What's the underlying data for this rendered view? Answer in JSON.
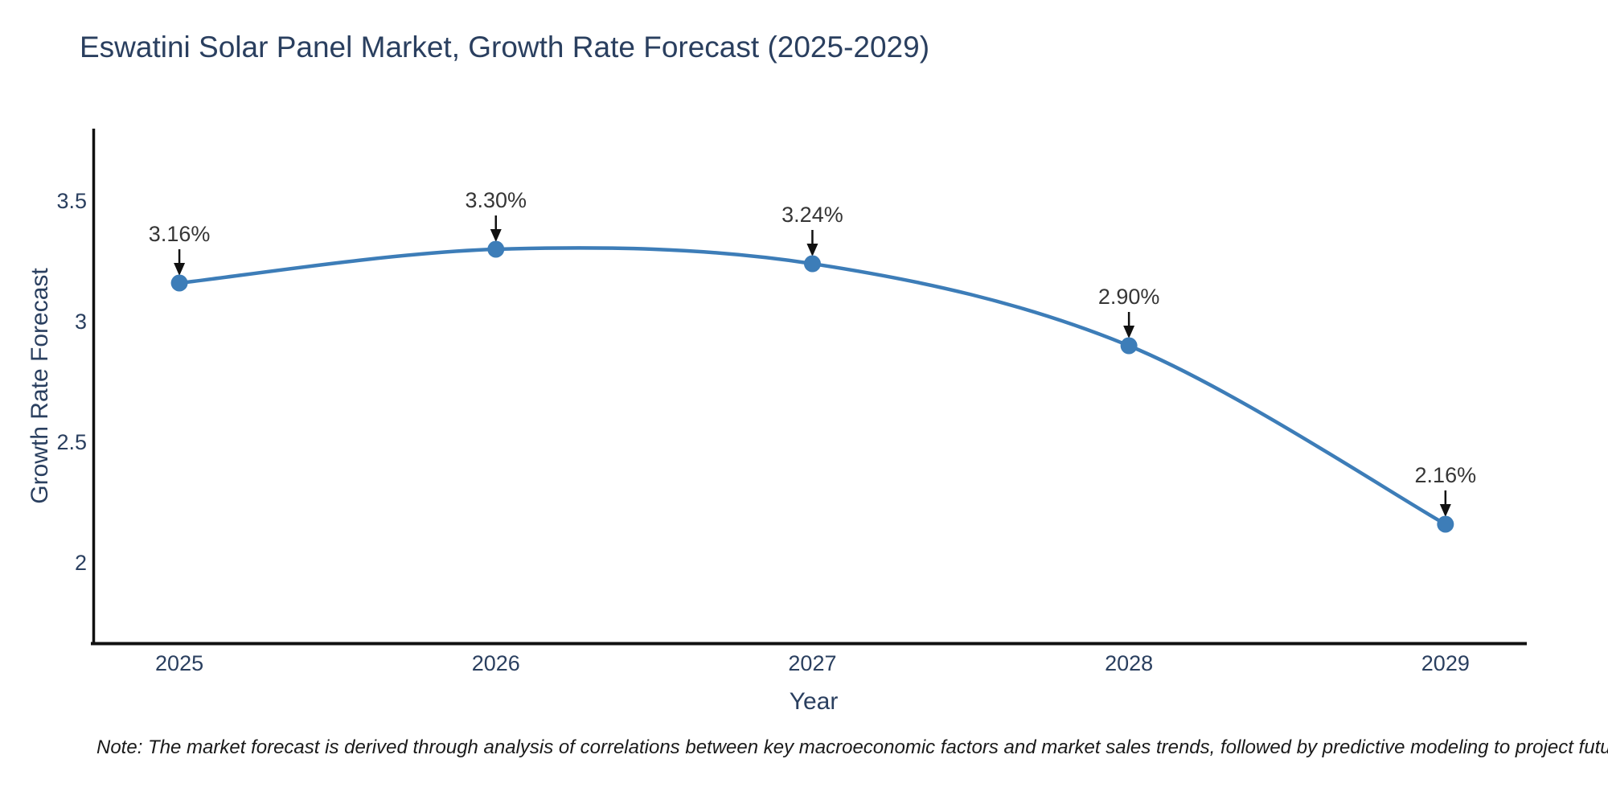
{
  "chart": {
    "title": "Eswatini Solar Panel Market, Growth Rate Forecast (2025-2029)",
    "note": "Note: The market forecast is derived through analysis of correlations between key macroeconomic factors and market sales trends, followed by predictive modeling to project future sales"
  },
  "chart_data": {
    "type": "line",
    "line_shape": "spline",
    "title": "Eswatini Solar Panel Market, Growth Rate Forecast (2025-2029)",
    "xlabel": "Year",
    "ylabel": "Growth Rate Forecast",
    "x": [
      2025,
      2026,
      2027,
      2028,
      2029
    ],
    "values": [
      3.16,
      3.3,
      3.24,
      2.9,
      2.16
    ],
    "point_labels": [
      "3.16%",
      "3.30%",
      "3.24%",
      "2.90%",
      "2.16%"
    ],
    "xtick_labels": [
      "2025",
      "2026",
      "2027",
      "2028",
      "2029"
    ],
    "yticks": [
      2,
      2.5,
      3,
      3.5
    ],
    "ytick_labels": [
      "2",
      "2.5",
      "3",
      "3.5"
    ],
    "xlim": [
      2024.728,
      2029.257
    ],
    "ylim": [
      1.6667,
      3.8
    ],
    "grid": false,
    "legend": false,
    "colors": {
      "line": "#3d7db8",
      "marker": "#3d7db8",
      "axis_line": "#111111",
      "tick_label": "#2a3f5f",
      "annotation_text": "#363636",
      "annotation_arrow": "#111111",
      "title": "#2a3f5f",
      "background": "#ffffff"
    }
  }
}
